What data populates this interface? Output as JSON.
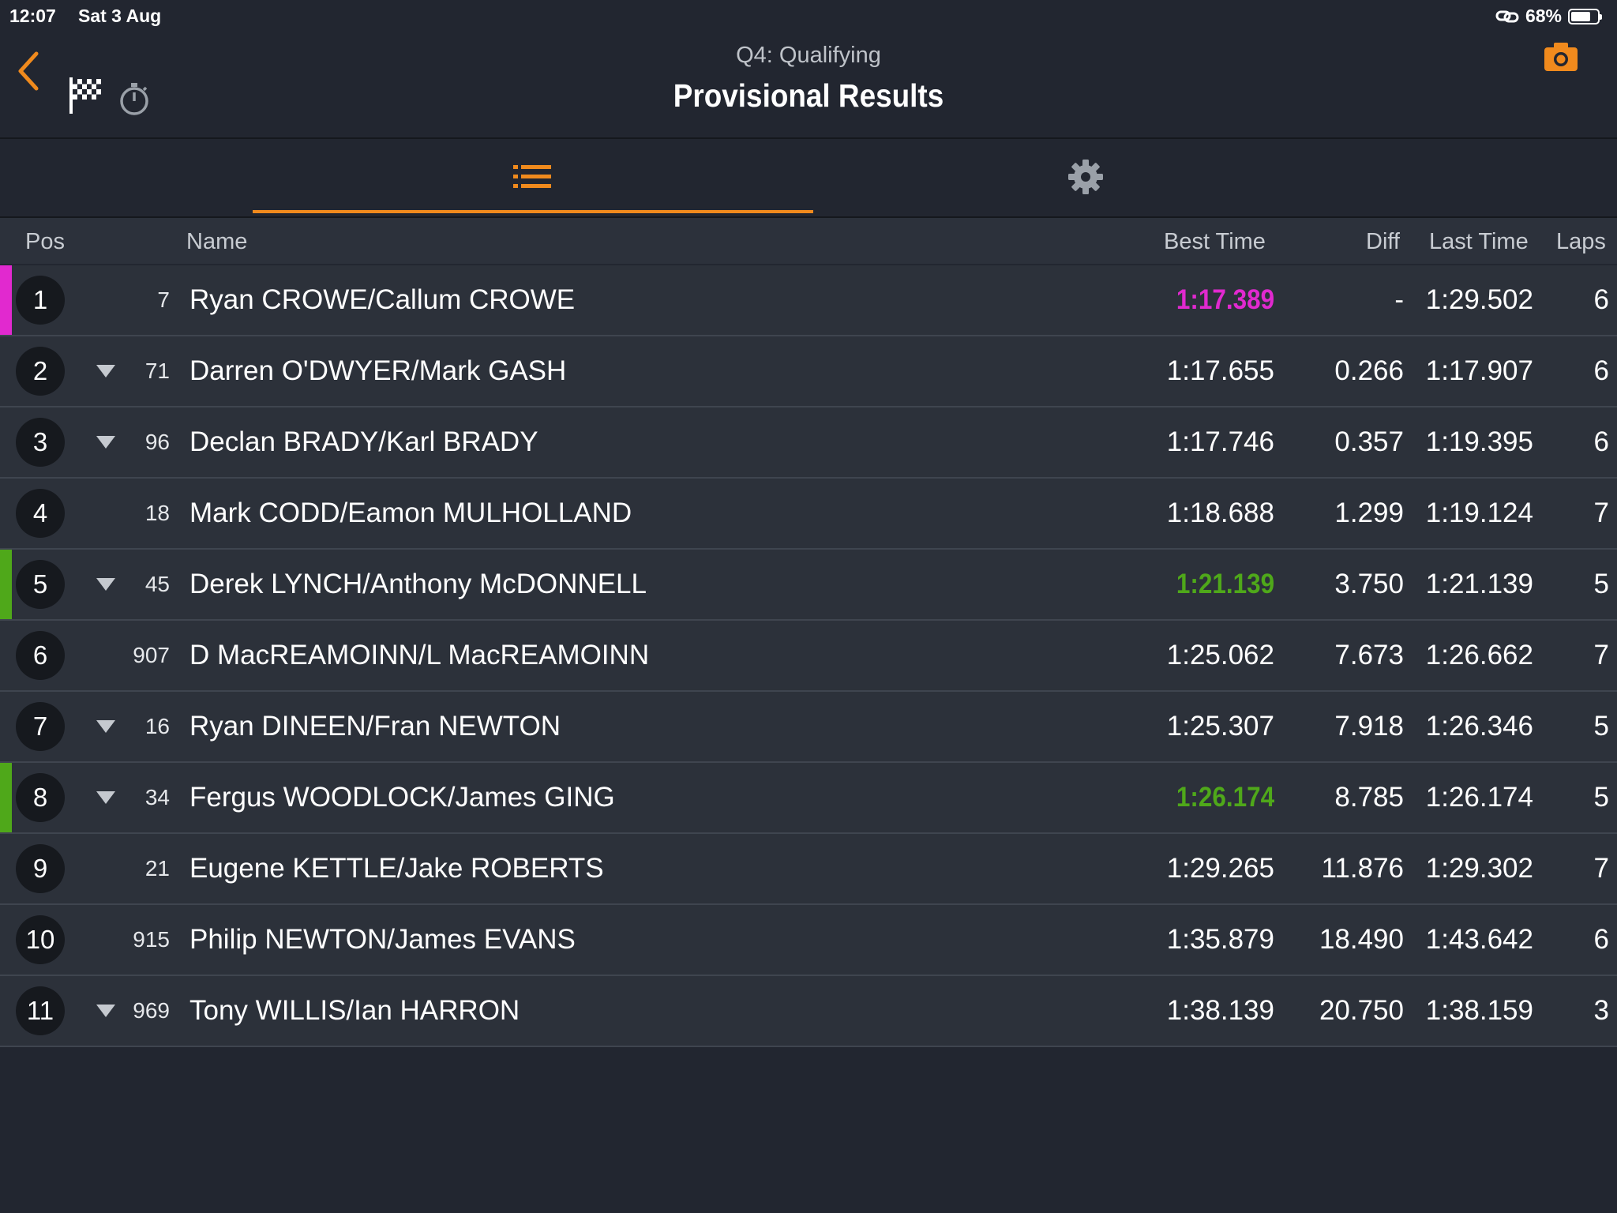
{
  "status": {
    "time": "12:07",
    "date": "Sat 3 Aug",
    "battery": "68%"
  },
  "header": {
    "subtitle": "Q4: Qualifying",
    "title": "Provisional Results"
  },
  "columns": {
    "pos": "Pos",
    "name": "Name",
    "best": "Best Time",
    "diff": "Diff",
    "last": "Last Time",
    "laps": "Laps"
  },
  "colors": {
    "accent": "#f08a1d",
    "purple": "#e129cf",
    "green": "#4fa81a"
  },
  "rows": [
    {
      "pos": "1",
      "num": "7",
      "name": "Ryan CROWE/Callum CROWE",
      "best": "1:17.389",
      "diff": "-",
      "last": "1:29.502",
      "laps": "6",
      "highlight": "purple",
      "arrow": false
    },
    {
      "pos": "2",
      "num": "71",
      "name": "Darren O'DWYER/Mark GASH",
      "best": "1:17.655",
      "diff": "0.266",
      "last": "1:17.907",
      "laps": "6",
      "highlight": "",
      "arrow": true
    },
    {
      "pos": "3",
      "num": "96",
      "name": "Declan BRADY/Karl BRADY",
      "best": "1:17.746",
      "diff": "0.357",
      "last": "1:19.395",
      "laps": "6",
      "highlight": "",
      "arrow": true
    },
    {
      "pos": "4",
      "num": "18",
      "name": "Mark CODD/Eamon MULHOLLAND",
      "best": "1:18.688",
      "diff": "1.299",
      "last": "1:19.124",
      "laps": "7",
      "highlight": "",
      "arrow": false
    },
    {
      "pos": "5",
      "num": "45",
      "name": "Derek LYNCH/Anthony McDONNELL",
      "best": "1:21.139",
      "diff": "3.750",
      "last": "1:21.139",
      "laps": "5",
      "highlight": "green",
      "arrow": true
    },
    {
      "pos": "6",
      "num": "907",
      "name": "D MacREAMOINN/L MacREAMOINN",
      "best": "1:25.062",
      "diff": "7.673",
      "last": "1:26.662",
      "laps": "7",
      "highlight": "",
      "arrow": false
    },
    {
      "pos": "7",
      "num": "16",
      "name": "Ryan DINEEN/Fran NEWTON",
      "best": "1:25.307",
      "diff": "7.918",
      "last": "1:26.346",
      "laps": "5",
      "highlight": "",
      "arrow": true
    },
    {
      "pos": "8",
      "num": "34",
      "name": "Fergus WOODLOCK/James GING",
      "best": "1:26.174",
      "diff": "8.785",
      "last": "1:26.174",
      "laps": "5",
      "highlight": "green",
      "arrow": true
    },
    {
      "pos": "9",
      "num": "21",
      "name": "Eugene KETTLE/Jake ROBERTS",
      "best": "1:29.265",
      "diff": "11.876",
      "last": "1:29.302",
      "laps": "7",
      "highlight": "",
      "arrow": false
    },
    {
      "pos": "10",
      "num": "915",
      "name": "Philip NEWTON/James EVANS",
      "best": "1:35.879",
      "diff": "18.490",
      "last": "1:43.642",
      "laps": "6",
      "highlight": "",
      "arrow": false
    },
    {
      "pos": "11",
      "num": "969",
      "name": "Tony WILLIS/Ian HARRON",
      "best": "1:38.139",
      "diff": "20.750",
      "last": "1:38.159",
      "laps": "3",
      "highlight": "",
      "arrow": true
    }
  ]
}
